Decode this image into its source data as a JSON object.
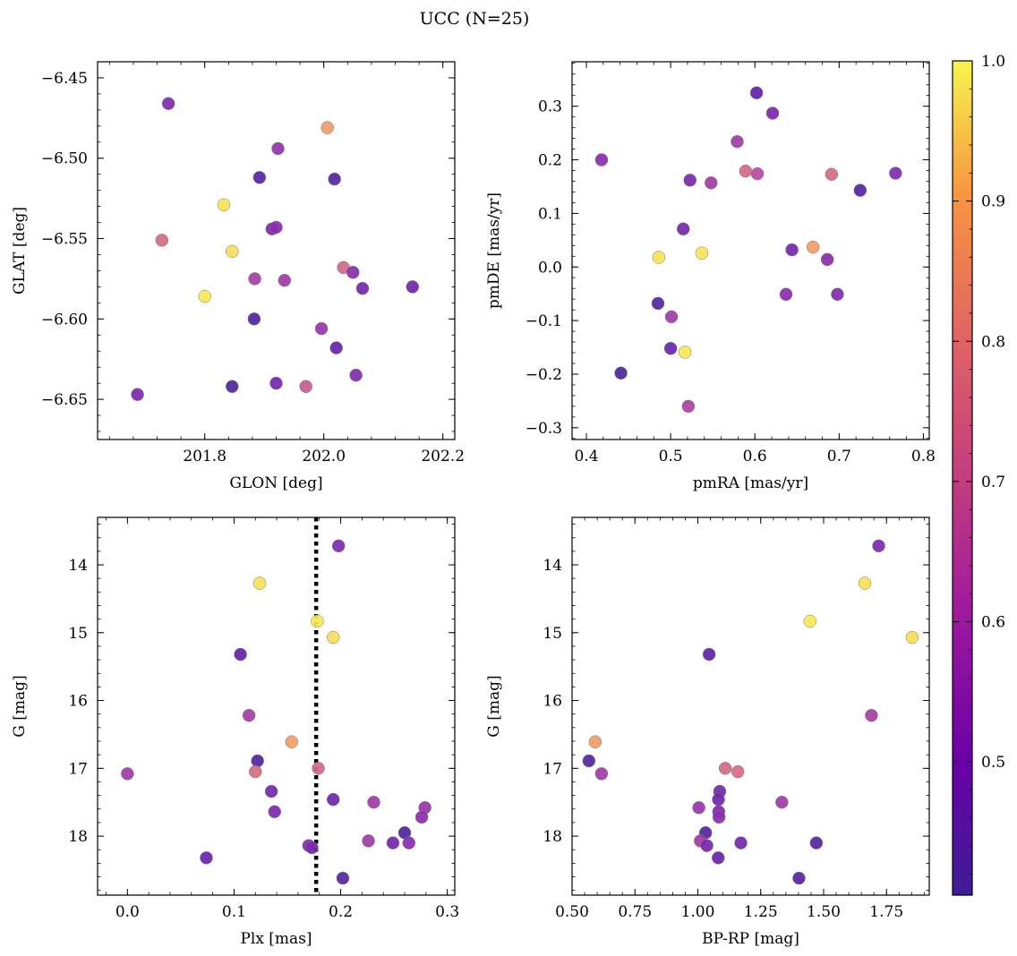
{
  "title": "UCC (N=25)",
  "colorbar": {
    "colormap": "plasma",
    "range": [
      0.405,
      1.0
    ],
    "ticks": [
      0.5,
      0.6,
      0.7,
      0.8,
      0.9,
      1.0
    ],
    "tick_labels": [
      "0.5",
      "0.6",
      "0.7",
      "0.8",
      "0.9",
      "1.0"
    ]
  },
  "chart_data": [
    {
      "type": "scatter",
      "xlabel": "GLON [deg]",
      "ylabel": "GLAT [deg]",
      "xlim": [
        201.62,
        202.22
      ],
      "ylim": [
        -6.675,
        -6.44
      ],
      "y_inverted": false,
      "xticks": [
        201.8,
        202.0,
        202.2
      ],
      "xtick_labels": [
        "201.8",
        "202.0",
        "202.2"
      ],
      "yticks": [
        -6.45,
        -6.5,
        -6.55,
        -6.6,
        -6.65
      ],
      "ytick_labels": [
        "−6.45",
        "−6.50",
        "−6.55",
        "−6.60",
        "−6.65"
      ],
      "points": [
        {
          "x": 201.739,
          "y": -6.466,
          "c": 0.56
        },
        {
          "x": 202.006,
          "y": -6.481,
          "c": 0.86
        },
        {
          "x": 201.923,
          "y": -6.494,
          "c": 0.6
        },
        {
          "x": 201.892,
          "y": -6.512,
          "c": 0.46
        },
        {
          "x": 202.018,
          "y": -6.513,
          "c": 0.45
        },
        {
          "x": 201.832,
          "y": -6.529,
          "c": 0.97
        },
        {
          "x": 201.913,
          "y": -6.544,
          "c": 0.55
        },
        {
          "x": 201.92,
          "y": -6.543,
          "c": 0.58
        },
        {
          "x": 201.728,
          "y": -6.551,
          "c": 0.76
        },
        {
          "x": 201.846,
          "y": -6.558,
          "c": 0.96
        },
        {
          "x": 202.033,
          "y": -6.568,
          "c": 0.75
        },
        {
          "x": 202.049,
          "y": -6.571,
          "c": 0.58
        },
        {
          "x": 201.884,
          "y": -6.575,
          "c": 0.64
        },
        {
          "x": 201.934,
          "y": -6.576,
          "c": 0.63
        },
        {
          "x": 202.065,
          "y": -6.581,
          "c": 0.53
        },
        {
          "x": 202.149,
          "y": -6.58,
          "c": 0.52
        },
        {
          "x": 201.8,
          "y": -6.586,
          "c": 0.98
        },
        {
          "x": 201.883,
          "y": -6.6,
          "c": 0.45
        },
        {
          "x": 201.996,
          "y": -6.606,
          "c": 0.61
        },
        {
          "x": 202.021,
          "y": -6.618,
          "c": 0.5
        },
        {
          "x": 202.054,
          "y": -6.635,
          "c": 0.56
        },
        {
          "x": 201.92,
          "y": -6.64,
          "c": 0.53
        },
        {
          "x": 201.846,
          "y": -6.642,
          "c": 0.44
        },
        {
          "x": 201.97,
          "y": -6.642,
          "c": 0.72
        },
        {
          "x": 201.687,
          "y": -6.647,
          "c": 0.54
        }
      ]
    },
    {
      "type": "scatter",
      "xlabel": "pmRA [mas/yr]",
      "ylabel": "pmDE [mas/yr]",
      "xlim": [
        0.383,
        0.807
      ],
      "ylim": [
        -0.322,
        0.383
      ],
      "y_inverted": false,
      "xticks": [
        0.4,
        0.5,
        0.6,
        0.7,
        0.8
      ],
      "xtick_labels": [
        "0.4",
        "0.5",
        "0.6",
        "0.7",
        "0.8"
      ],
      "yticks": [
        -0.3,
        -0.2,
        -0.1,
        0.0,
        0.1,
        0.2,
        0.3
      ],
      "ytick_labels": [
        "−0.3",
        "−0.2",
        "−0.1",
        "0.0",
        "0.1",
        "0.2",
        "0.3"
      ],
      "points": [
        {
          "x": 0.602,
          "y": 0.325,
          "c": 0.49
        },
        {
          "x": 0.621,
          "y": 0.287,
          "c": 0.54
        },
        {
          "x": 0.579,
          "y": 0.234,
          "c": 0.63
        },
        {
          "x": 0.418,
          "y": 0.2,
          "c": 0.58
        },
        {
          "x": 0.589,
          "y": 0.179,
          "c": 0.75
        },
        {
          "x": 0.603,
          "y": 0.174,
          "c": 0.68
        },
        {
          "x": 0.691,
          "y": 0.173,
          "c": 0.76
        },
        {
          "x": 0.767,
          "y": 0.175,
          "c": 0.56
        },
        {
          "x": 0.523,
          "y": 0.162,
          "c": 0.54
        },
        {
          "x": 0.548,
          "y": 0.157,
          "c": 0.63
        },
        {
          "x": 0.725,
          "y": 0.143,
          "c": 0.46
        },
        {
          "x": 0.515,
          "y": 0.071,
          "c": 0.53
        },
        {
          "x": 0.644,
          "y": 0.032,
          "c": 0.53
        },
        {
          "x": 0.669,
          "y": 0.037,
          "c": 0.86
        },
        {
          "x": 0.537,
          "y": 0.026,
          "c": 0.97
        },
        {
          "x": 0.486,
          "y": 0.018,
          "c": 0.97
        },
        {
          "x": 0.686,
          "y": 0.014,
          "c": 0.58
        },
        {
          "x": 0.637,
          "y": -0.051,
          "c": 0.58
        },
        {
          "x": 0.698,
          "y": -0.051,
          "c": 0.56
        },
        {
          "x": 0.485,
          "y": -0.068,
          "c": 0.45
        },
        {
          "x": 0.501,
          "y": -0.093,
          "c": 0.63
        },
        {
          "x": 0.5,
          "y": -0.152,
          "c": 0.5
        },
        {
          "x": 0.517,
          "y": -0.159,
          "c": 0.98
        },
        {
          "x": 0.441,
          "y": -0.198,
          "c": 0.44
        },
        {
          "x": 0.521,
          "y": -0.26,
          "c": 0.65
        }
      ]
    },
    {
      "type": "scatter",
      "xlabel": "Plx [mas]",
      "ylabel": "G [mag]",
      "xlim": [
        -0.028,
        0.307
      ],
      "ylim": [
        18.87,
        13.3
      ],
      "y_inverted": true,
      "xticks": [
        0.0,
        0.1,
        0.2,
        0.3
      ],
      "xtick_labels": [
        "0.0",
        "0.1",
        "0.2",
        "0.3"
      ],
      "yticks": [
        14,
        15,
        16,
        17,
        18
      ],
      "ytick_labels": [
        "14",
        "15",
        "16",
        "17",
        "18"
      ],
      "vline": {
        "x": 0.177,
        "style": "dotted",
        "color": "#000000"
      },
      "points": [
        {
          "x": 0.198,
          "y": 13.72,
          "c": 0.55
        },
        {
          "x": 0.124,
          "y": 14.27,
          "c": 0.97
        },
        {
          "x": 0.178,
          "y": 14.83,
          "c": 0.98
        },
        {
          "x": 0.193,
          "y": 15.07,
          "c": 0.96
        },
        {
          "x": 0.106,
          "y": 15.32,
          "c": 0.49
        },
        {
          "x": 0.114,
          "y": 16.22,
          "c": 0.64
        },
        {
          "x": 0.154,
          "y": 16.61,
          "c": 0.86
        },
        {
          "x": 0.122,
          "y": 16.89,
          "c": 0.45
        },
        {
          "x": 0.12,
          "y": 17.05,
          "c": 0.76
        },
        {
          "x": 0.179,
          "y": 17.0,
          "c": 0.75
        },
        {
          "x": 0.0,
          "y": 17.08,
          "c": 0.63
        },
        {
          "x": 0.135,
          "y": 17.34,
          "c": 0.53
        },
        {
          "x": 0.193,
          "y": 17.46,
          "c": 0.52
        },
        {
          "x": 0.231,
          "y": 17.5,
          "c": 0.63
        },
        {
          "x": 0.279,
          "y": 17.58,
          "c": 0.61
        },
        {
          "x": 0.138,
          "y": 17.64,
          "c": 0.55
        },
        {
          "x": 0.276,
          "y": 17.72,
          "c": 0.58
        },
        {
          "x": 0.26,
          "y": 17.95,
          "c": 0.45
        },
        {
          "x": 0.226,
          "y": 18.07,
          "c": 0.63
        },
        {
          "x": 0.249,
          "y": 18.1,
          "c": 0.53
        },
        {
          "x": 0.264,
          "y": 18.1,
          "c": 0.58
        },
        {
          "x": 0.17,
          "y": 18.14,
          "c": 0.56
        },
        {
          "x": 0.173,
          "y": 18.17,
          "c": 0.54
        },
        {
          "x": 0.074,
          "y": 18.32,
          "c": 0.5
        },
        {
          "x": 0.202,
          "y": 18.62,
          "c": 0.46
        }
      ]
    },
    {
      "type": "scatter",
      "xlabel": "BP-RP [mag]",
      "ylabel": "G [mag]",
      "xlim": [
        0.5,
        1.92
      ],
      "ylim": [
        18.87,
        13.3
      ],
      "y_inverted": true,
      "xticks": [
        0.5,
        0.75,
        1.0,
        1.25,
        1.5,
        1.75
      ],
      "xtick_labels": [
        "0.50",
        "0.75",
        "1.00",
        "1.25",
        "1.50",
        "1.75"
      ],
      "yticks": [
        14,
        15,
        16,
        17,
        18
      ],
      "ytick_labels": [
        "14",
        "15",
        "16",
        "17",
        "18"
      ],
      "points": [
        {
          "x": 1.719,
          "y": 13.72,
          "c": 0.55
        },
        {
          "x": 1.664,
          "y": 14.27,
          "c": 0.97
        },
        {
          "x": 1.446,
          "y": 14.83,
          "c": 0.98
        },
        {
          "x": 1.852,
          "y": 15.07,
          "c": 0.96
        },
        {
          "x": 1.045,
          "y": 15.32,
          "c": 0.49
        },
        {
          "x": 1.69,
          "y": 16.22,
          "c": 0.64
        },
        {
          "x": 0.592,
          "y": 16.61,
          "c": 0.86
        },
        {
          "x": 0.567,
          "y": 16.89,
          "c": 0.45
        },
        {
          "x": 1.159,
          "y": 17.05,
          "c": 0.76
        },
        {
          "x": 1.109,
          "y": 17.0,
          "c": 0.75
        },
        {
          "x": 0.617,
          "y": 17.08,
          "c": 0.63
        },
        {
          "x": 1.087,
          "y": 17.34,
          "c": 0.53
        },
        {
          "x": 1.082,
          "y": 17.46,
          "c": 0.52
        },
        {
          "x": 1.334,
          "y": 17.5,
          "c": 0.63
        },
        {
          "x": 1.004,
          "y": 17.58,
          "c": 0.61
        },
        {
          "x": 1.083,
          "y": 17.64,
          "c": 0.55
        },
        {
          "x": 1.084,
          "y": 17.72,
          "c": 0.58
        },
        {
          "x": 1.031,
          "y": 17.95,
          "c": 0.45
        },
        {
          "x": 1.01,
          "y": 18.07,
          "c": 0.63
        },
        {
          "x": 1.171,
          "y": 18.1,
          "c": 0.53
        },
        {
          "x": 1.471,
          "y": 18.1,
          "c": 0.46
        },
        {
          "x": 1.036,
          "y": 18.14,
          "c": 0.54
        },
        {
          "x": 1.081,
          "y": 18.32,
          "c": 0.5
        },
        {
          "x": 1.402,
          "y": 18.62,
          "c": 0.46
        }
      ]
    }
  ]
}
